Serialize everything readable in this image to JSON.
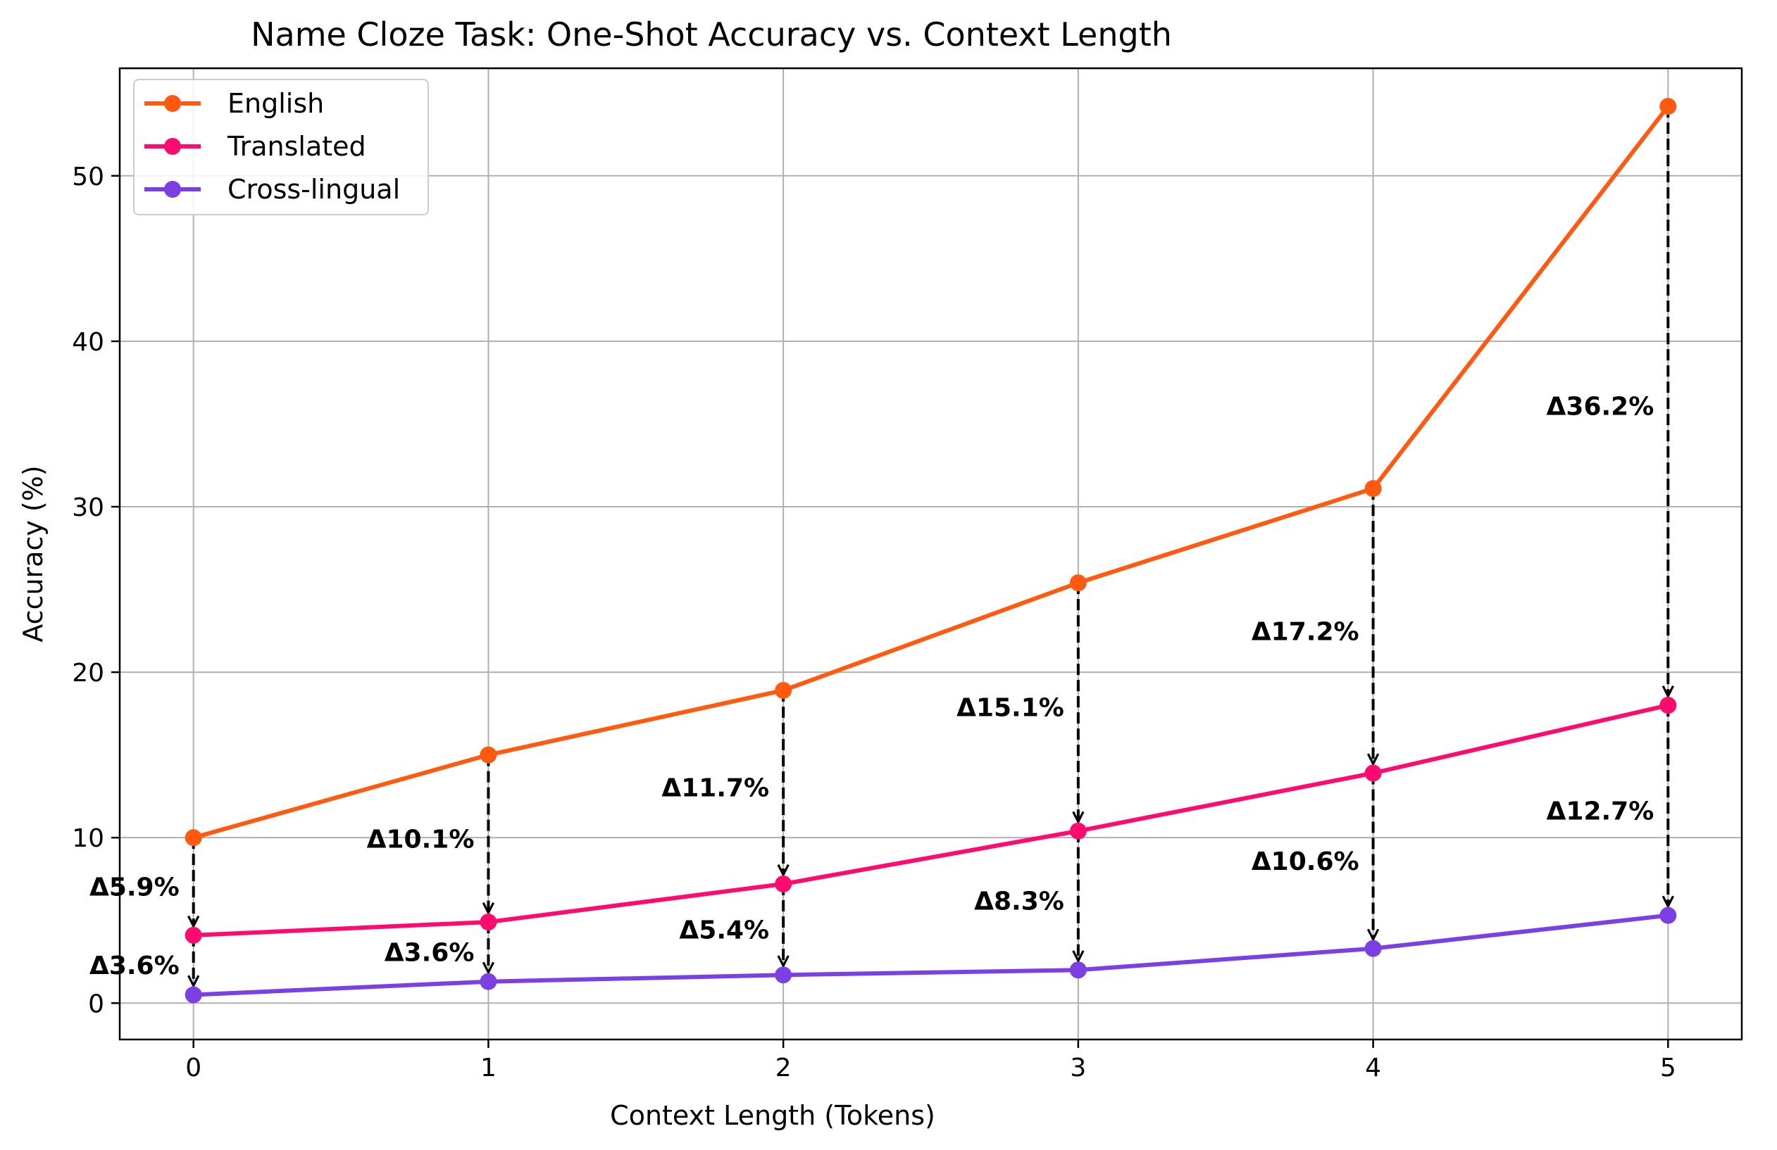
{
  "chart_data": {
    "type": "line",
    "title": "Name Cloze Task: One-Shot Accuracy vs. Context Length",
    "xlabel": "Context Length (Tokens)",
    "ylabel": "Accuracy (%)",
    "x": [
      0,
      1,
      2,
      3,
      4,
      5
    ],
    "x_ticks": [
      "0",
      "1",
      "2",
      "3",
      "4",
      "5"
    ],
    "y_ticks": [
      "0",
      "10",
      "20",
      "30",
      "40",
      "50"
    ],
    "xlim": [
      -0.25,
      5.25
    ],
    "ylim": [
      -2.2,
      56.5
    ],
    "grid": true,
    "legend_position": "upper-left",
    "series": [
      {
        "name": "English",
        "color": "#ff5a0f",
        "values": [
          10.0,
          15.0,
          18.9,
          25.4,
          31.1,
          54.2
        ]
      },
      {
        "name": "Translated",
        "color": "#ff0a6e",
        "values": [
          4.1,
          4.9,
          7.2,
          10.4,
          13.9,
          18.0
        ]
      },
      {
        "name": "Cross-lingual",
        "color": "#7b3fe4",
        "values": [
          0.5,
          1.3,
          1.7,
          2.0,
          3.3,
          5.3
        ]
      }
    ],
    "annotations": [
      {
        "text": "Δ5.9%",
        "x": 0,
        "from_series": 0,
        "to_series": 1
      },
      {
        "text": "Δ3.6%",
        "x": 0,
        "from_series": 1,
        "to_series": 2
      },
      {
        "text": "Δ10.1%",
        "x": 1,
        "from_series": 0,
        "to_series": 1
      },
      {
        "text": "Δ3.6%",
        "x": 1,
        "from_series": 1,
        "to_series": 2
      },
      {
        "text": "Δ11.7%",
        "x": 2,
        "from_series": 0,
        "to_series": 1
      },
      {
        "text": "Δ5.4%",
        "x": 2,
        "from_series": 1,
        "to_series": 2
      },
      {
        "text": "Δ15.1%",
        "x": 3,
        "from_series": 0,
        "to_series": 1
      },
      {
        "text": "Δ8.3%",
        "x": 3,
        "from_series": 1,
        "to_series": 2
      },
      {
        "text": "Δ17.2%",
        "x": 4,
        "from_series": 0,
        "to_series": 1
      },
      {
        "text": "Δ10.6%",
        "x": 4,
        "from_series": 1,
        "to_series": 2
      },
      {
        "text": "Δ36.2%",
        "x": 5,
        "from_series": 0,
        "to_series": 1
      },
      {
        "text": "Δ12.7%",
        "x": 5,
        "from_series": 1,
        "to_series": 2
      }
    ]
  }
}
